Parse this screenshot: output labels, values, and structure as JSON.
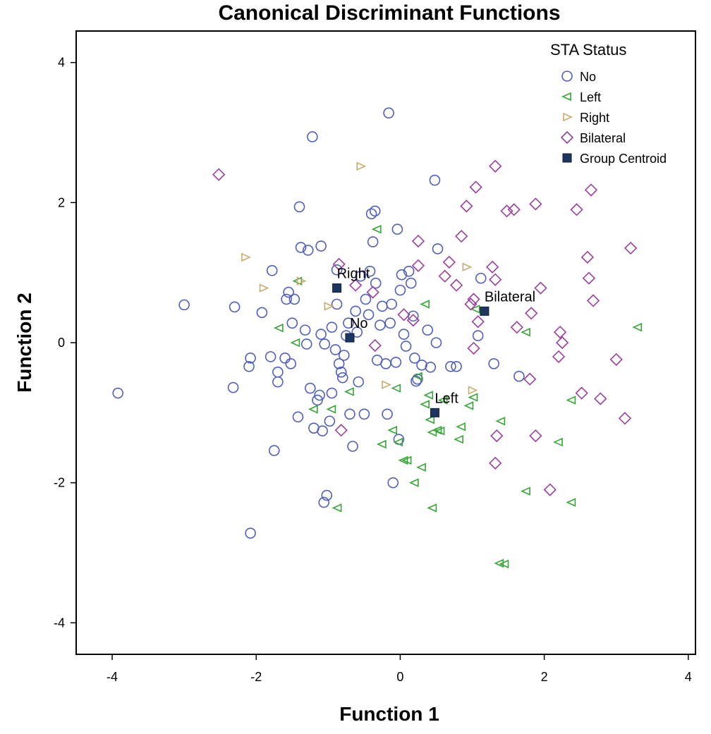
{
  "chart_data": {
    "type": "scatter",
    "title": "Canonical Discriminant Functions",
    "xlabel": "Function 1",
    "ylabel": "Function 2",
    "xlim": [
      -4.5,
      4.1
    ],
    "ylim": [
      -4.45,
      4.45
    ],
    "xticks": [
      -4,
      -2,
      0,
      2,
      4
    ],
    "yticks": [
      -4,
      -2,
      0,
      2,
      4
    ],
    "legend": {
      "title": "STA Status",
      "position": "top-right",
      "entries": [
        "No",
        "Left",
        "Right",
        "Bilateral",
        "Group Centroid"
      ]
    },
    "series": [
      {
        "name": "No",
        "marker": "circle",
        "color": "#4f5fbf",
        "points": [
          [
            -3.92,
            -0.72
          ],
          [
            -3.0,
            0.54
          ],
          [
            -2.3,
            0.51
          ],
          [
            -2.32,
            -0.64
          ],
          [
            -2.08,
            -0.22
          ],
          [
            -2.1,
            -0.34
          ],
          [
            -2.08,
            -2.72
          ],
          [
            -1.92,
            0.43
          ],
          [
            -1.8,
            -0.2
          ],
          [
            -1.78,
            1.03
          ],
          [
            -1.75,
            -1.54
          ],
          [
            -1.7,
            -0.42
          ],
          [
            -1.7,
            -0.56
          ],
          [
            -1.6,
            -0.22
          ],
          [
            -1.58,
            0.62
          ],
          [
            -1.55,
            0.72
          ],
          [
            -1.52,
            -0.3
          ],
          [
            -1.5,
            0.28
          ],
          [
            -1.47,
            0.62
          ],
          [
            -1.42,
            -1.06
          ],
          [
            -1.4,
            1.94
          ],
          [
            -1.38,
            1.36
          ],
          [
            -1.32,
            0.18
          ],
          [
            -1.3,
            -0.02
          ],
          [
            -1.28,
            1.32
          ],
          [
            -1.25,
            -0.65
          ],
          [
            -1.22,
            2.94
          ],
          [
            -1.2,
            -1.22
          ],
          [
            -1.15,
            -0.82
          ],
          [
            -1.12,
            -0.75
          ],
          [
            -1.1,
            0.12
          ],
          [
            -1.1,
            1.38
          ],
          [
            -1.08,
            -1.26
          ],
          [
            -1.06,
            -2.28
          ],
          [
            -1.05,
            -0.02
          ],
          [
            -1.02,
            -2.18
          ],
          [
            -0.98,
            -1.12
          ],
          [
            -0.95,
            -0.72
          ],
          [
            -0.95,
            0.22
          ],
          [
            -0.9,
            -0.1
          ],
          [
            -0.88,
            1.04
          ],
          [
            -0.88,
            0.55
          ],
          [
            -0.85,
            -0.3
          ],
          [
            -0.82,
            -0.42
          ],
          [
            -0.8,
            -0.5
          ],
          [
            -0.78,
            -0.18
          ],
          [
            -0.75,
            0.1
          ],
          [
            -0.72,
            0.28
          ],
          [
            -0.7,
            -1.02
          ],
          [
            -0.66,
            -1.48
          ],
          [
            -0.62,
            0.45
          ],
          [
            -0.6,
            0.15
          ],
          [
            -0.58,
            -0.56
          ],
          [
            -0.55,
            0.95
          ],
          [
            -0.5,
            -1.02
          ],
          [
            -0.48,
            0.62
          ],
          [
            -0.44,
            0.4
          ],
          [
            -0.42,
            1.02
          ],
          [
            -0.4,
            1.84
          ],
          [
            -0.38,
            1.44
          ],
          [
            -0.35,
            1.88
          ],
          [
            -0.34,
            0.85
          ],
          [
            -0.32,
            -0.25
          ],
          [
            -0.28,
            0.25
          ],
          [
            -0.25,
            0.52
          ],
          [
            -0.2,
            -0.3
          ],
          [
            -0.18,
            -1.02
          ],
          [
            -0.16,
            3.28
          ],
          [
            -0.14,
            0.28
          ],
          [
            -0.12,
            0.55
          ],
          [
            -0.1,
            -2.0
          ],
          [
            -0.06,
            -0.28
          ],
          [
            -0.04,
            1.62
          ],
          [
            -0.02,
            -1.38
          ],
          [
            0.0,
            0.75
          ],
          [
            0.02,
            0.97
          ],
          [
            0.05,
            0.12
          ],
          [
            0.08,
            -0.05
          ],
          [
            0.12,
            1.02
          ],
          [
            0.15,
            0.85
          ],
          [
            0.18,
            0.38
          ],
          [
            0.2,
            -0.22
          ],
          [
            0.22,
            -0.55
          ],
          [
            0.24,
            -0.52
          ],
          [
            0.3,
            -0.32
          ],
          [
            0.38,
            0.18
          ],
          [
            0.42,
            -0.35
          ],
          [
            0.48,
            2.32
          ],
          [
            0.5,
            0.0
          ],
          [
            0.52,
            1.34
          ],
          [
            0.7,
            -0.34
          ],
          [
            0.78,
            -0.34
          ],
          [
            1.08,
            0.1
          ],
          [
            1.12,
            0.92
          ],
          [
            1.3,
            -0.3
          ],
          [
            1.65,
            -0.48
          ]
        ]
      },
      {
        "name": "Left",
        "marker": "triangle-left",
        "color": "#35a535",
        "points": [
          [
            -1.68,
            0.21
          ],
          [
            -1.45,
            0.0
          ],
          [
            -1.42,
            0.88
          ],
          [
            -1.2,
            -0.95
          ],
          [
            -0.95,
            -0.95
          ],
          [
            -0.87,
            -2.36
          ],
          [
            -0.7,
            -0.7
          ],
          [
            -0.32,
            1.62
          ],
          [
            -0.25,
            -1.45
          ],
          [
            -0.1,
            -1.25
          ],
          [
            -0.05,
            -0.65
          ],
          [
            -0.02,
            -1.42
          ],
          [
            0.05,
            -1.68
          ],
          [
            0.1,
            -1.68
          ],
          [
            0.2,
            -2.0
          ],
          [
            0.25,
            -0.48
          ],
          [
            0.3,
            -1.78
          ],
          [
            0.35,
            -0.88
          ],
          [
            0.35,
            0.55
          ],
          [
            0.4,
            -0.75
          ],
          [
            0.42,
            -1.1
          ],
          [
            0.45,
            -1.28
          ],
          [
            0.45,
            -2.36
          ],
          [
            0.52,
            -1.25
          ],
          [
            0.56,
            -1.26
          ],
          [
            0.6,
            -0.82
          ],
          [
            0.82,
            -1.38
          ],
          [
            0.85,
            -1.2
          ],
          [
            0.96,
            -0.9
          ],
          [
            1.02,
            -0.78
          ],
          [
            1.05,
            0.48
          ],
          [
            1.4,
            -1.12
          ],
          [
            1.38,
            -3.15
          ],
          [
            1.45,
            -3.16
          ],
          [
            1.75,
            0.15
          ],
          [
            1.75,
            -2.12
          ],
          [
            2.2,
            -1.42
          ],
          [
            2.38,
            -0.82
          ],
          [
            2.38,
            -2.28
          ],
          [
            3.3,
            0.22
          ]
        ]
      },
      {
        "name": "Right",
        "marker": "triangle-right",
        "color": "#c8ac6c",
        "points": [
          [
            -2.15,
            1.22
          ],
          [
            -1.9,
            0.78
          ],
          [
            -1.38,
            0.88
          ],
          [
            -1.0,
            0.52
          ],
          [
            -0.55,
            2.52
          ],
          [
            -0.2,
            -0.6
          ],
          [
            0.92,
            1.08
          ],
          [
            1.0,
            -0.68
          ]
        ]
      },
      {
        "name": "Bilateral",
        "marker": "diamond",
        "color": "#9b3f9f",
        "points": [
          [
            -2.52,
            2.4
          ],
          [
            -0.85,
            1.12
          ],
          [
            -0.82,
            -1.25
          ],
          [
            -0.62,
            0.82
          ],
          [
            -0.38,
            0.72
          ],
          [
            -0.35,
            -0.04
          ],
          [
            0.05,
            0.4
          ],
          [
            0.18,
            0.32
          ],
          [
            0.25,
            1.45
          ],
          [
            0.25,
            1.1
          ],
          [
            0.62,
            0.95
          ],
          [
            0.68,
            1.15
          ],
          [
            0.78,
            0.82
          ],
          [
            0.85,
            1.52
          ],
          [
            0.92,
            1.95
          ],
          [
            0.98,
            0.55
          ],
          [
            1.02,
            0.62
          ],
          [
            1.02,
            -0.08
          ],
          [
            1.05,
            2.22
          ],
          [
            1.08,
            0.3
          ],
          [
            1.28,
            1.08
          ],
          [
            1.32,
            0.9
          ],
          [
            1.32,
            2.52
          ],
          [
            1.34,
            -1.33
          ],
          [
            1.32,
            -1.72
          ],
          [
            1.48,
            1.88
          ],
          [
            1.58,
            1.9
          ],
          [
            1.62,
            0.22
          ],
          [
            1.8,
            -0.52
          ],
          [
            1.82,
            0.42
          ],
          [
            1.88,
            1.98
          ],
          [
            1.88,
            -1.33
          ],
          [
            1.95,
            0.78
          ],
          [
            2.08,
            -2.1
          ],
          [
            2.2,
            -0.2
          ],
          [
            2.22,
            0.15
          ],
          [
            2.25,
            0.0
          ],
          [
            2.45,
            1.9
          ],
          [
            2.52,
            -0.72
          ],
          [
            2.6,
            1.22
          ],
          [
            2.62,
            0.92
          ],
          [
            2.65,
            2.18
          ],
          [
            2.68,
            0.6
          ],
          [
            2.78,
            -0.8
          ],
          [
            3.0,
            -0.24
          ],
          [
            3.12,
            -1.08
          ],
          [
            3.2,
            1.35
          ]
        ]
      }
    ],
    "centroids": [
      {
        "label": "No",
        "x": -0.7,
        "y": 0.07
      },
      {
        "label": "Left",
        "x": 0.48,
        "y": -1.0
      },
      {
        "label": "Right",
        "x": -0.88,
        "y": 0.78
      },
      {
        "label": "Bilateral",
        "x": 1.17,
        "y": 0.45
      }
    ],
    "centroid_color": "#1c3660"
  }
}
